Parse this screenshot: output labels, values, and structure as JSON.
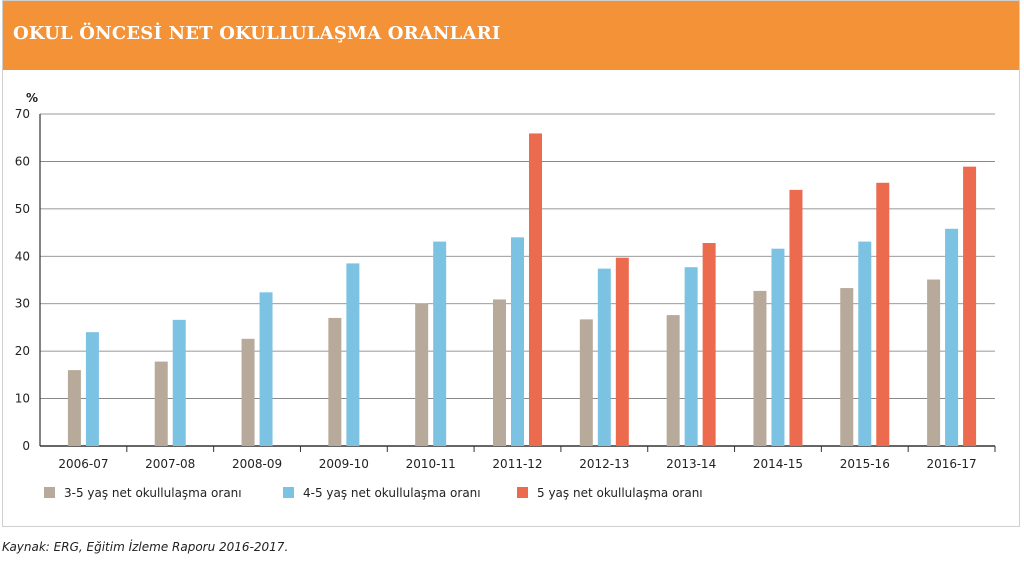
{
  "header": {
    "title": "OKUL ÖNCESİ NET OKULLULAŞMA ORANLARI"
  },
  "source": "Kaynak: ERG, Eğitim İzleme Raporu 2016-2017.",
  "colors": {
    "header": "#f39236",
    "s1": "#b7aa9a",
    "s2": "#7cc3e3",
    "s3": "#ec6b4f"
  },
  "chart_data": {
    "type": "bar",
    "title": "",
    "ylabel": "%",
    "xlabel": "",
    "ylim": [
      0,
      70
    ],
    "yticks": [
      0,
      10,
      20,
      30,
      40,
      50,
      60,
      70
    ],
    "grid": true,
    "legend_position": "bottom-left",
    "categories": [
      "2006-07",
      "2007-08",
      "2008-09",
      "2009-10",
      "2010-11",
      "2011-12",
      "2012-13",
      "2013-14",
      "2014-15",
      "2015-16",
      "2016-17"
    ],
    "series": [
      {
        "name": "3-5 yaş net okullulaşma oranı",
        "color": "#b7aa9a",
        "values": [
          16,
          17.8,
          22.6,
          27,
          30.1,
          30.9,
          26.7,
          27.6,
          32.7,
          33.3,
          35.1
        ]
      },
      {
        "name": "4-5 yaş net okullulaşma oranı",
        "color": "#7cc3e3",
        "values": [
          24,
          26.6,
          32.4,
          38.5,
          43.1,
          44,
          37.4,
          37.7,
          41.6,
          43.1,
          45.8
        ]
      },
      {
        "name": "5 yaş net okullulaşma oranı",
        "color": "#ec6b4f",
        "values": [
          null,
          null,
          null,
          null,
          null,
          65.9,
          39.7,
          42.8,
          54,
          55.5,
          58.9
        ]
      }
    ]
  }
}
